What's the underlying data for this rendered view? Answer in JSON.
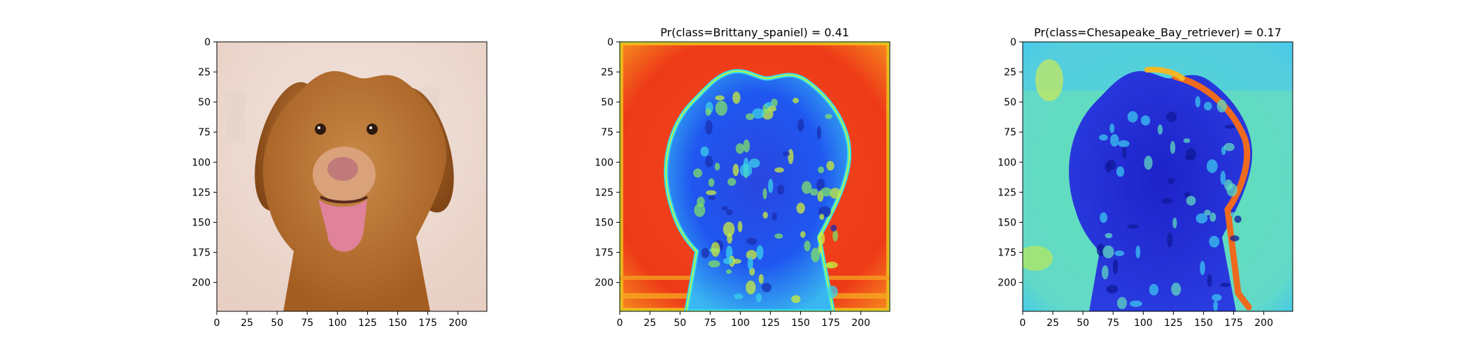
{
  "chart_data": [
    {
      "type": "heatmap",
      "title": "",
      "content": "photo of a dog with reddish-golden fur, tongue out, on a light background",
      "xlabel": "",
      "ylabel": "",
      "xlim": [
        0,
        224
      ],
      "ylim": [
        224,
        0
      ],
      "xticks": [
        0,
        25,
        50,
        75,
        100,
        125,
        150,
        175,
        200
      ],
      "yticks": [
        0,
        25,
        50,
        75,
        100,
        125,
        150,
        175,
        200
      ],
      "grid": false
    },
    {
      "type": "heatmap",
      "title": "Pr(class=Brittany_spaniel) =  0.41",
      "colormap": "jet",
      "content": "saliency heatmap overlaid on dog image; background mostly red/high, dog silhouette blue/low with green-yellow speckles",
      "xlabel": "",
      "ylabel": "",
      "xlim": [
        0,
        224
      ],
      "ylim": [
        224,
        0
      ],
      "xticks": [
        0,
        25,
        50,
        75,
        100,
        125,
        150,
        175,
        200
      ],
      "yticks": [
        0,
        25,
        50,
        75,
        100,
        125,
        150,
        175,
        200
      ],
      "grid": false
    },
    {
      "type": "heatmap",
      "title": "Pr(class=Chesapeake_Bay_retriever) =  0.17",
      "colormap": "jet",
      "content": "saliency heatmap overlaid on dog image; background cyan/green, dog silhouette dark blue, orange-red along right edge of dog",
      "xlabel": "",
      "ylabel": "",
      "xlim": [
        0,
        224
      ],
      "ylim": [
        224,
        0
      ],
      "xticks": [
        0,
        25,
        50,
        75,
        100,
        125,
        150,
        175,
        200
      ],
      "yticks": [
        0,
        25,
        50,
        75,
        100,
        125,
        150,
        175,
        200
      ],
      "grid": false
    }
  ]
}
